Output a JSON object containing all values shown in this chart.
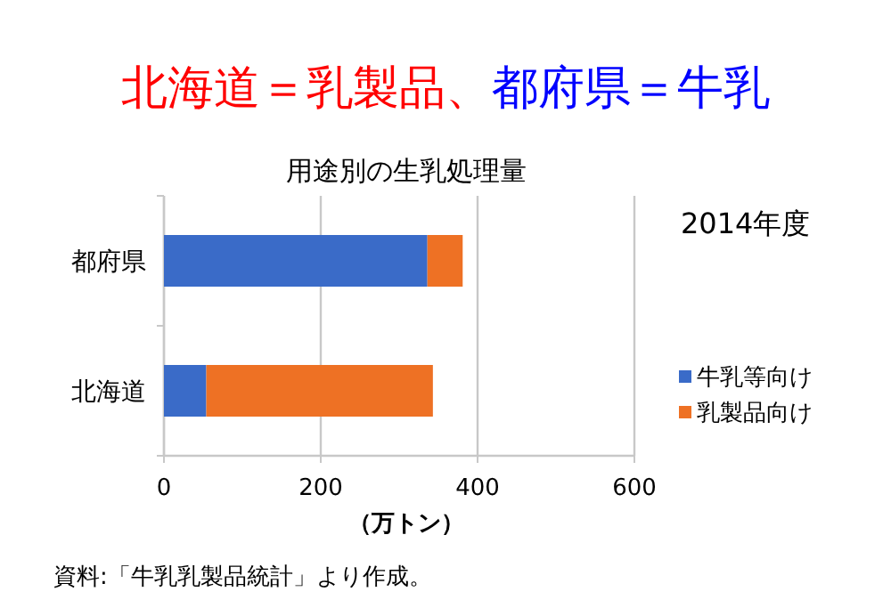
{
  "chart_data": {
    "type": "bar",
    "orientation": "horizontal",
    "stacked": true,
    "title": "用途別の生乳処理量",
    "xlabel": "（万トン）",
    "annotations": [
      "北海道＝乳製品、",
      "都府県＝牛乳",
      "2014年度",
      "資料:「牛乳乳製品統計」より作成。"
    ],
    "categories": [
      "都府県",
      "北海道"
    ],
    "series": [
      {
        "name": "牛乳等向け",
        "color": "#3a6bc8",
        "values": [
          336,
          54
        ]
      },
      {
        "name": "乳製品向け",
        "color": "#ee7124",
        "values": [
          45,
          289
        ]
      }
    ],
    "xlim": [
      0,
      600
    ],
    "xticks": [
      0,
      200,
      400,
      600
    ],
    "grid": "x",
    "legend": "right"
  }
}
